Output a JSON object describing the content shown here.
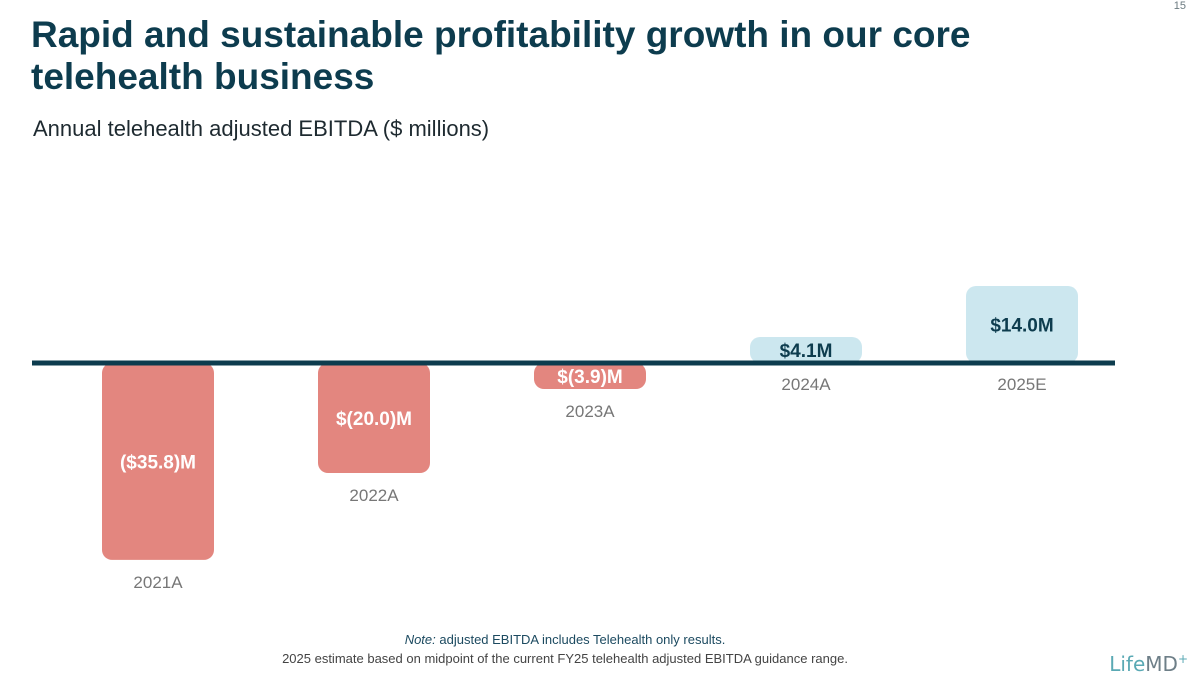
{
  "page_number": "15",
  "title": "Rapid and sustainable profitability growth in our core telehealth business",
  "chart_data": {
    "type": "bar",
    "title": "Annual telehealth adjusted EBITDA ($ millions)",
    "categories": [
      "2021A",
      "2022A",
      "2023A",
      "2024A",
      "2025E"
    ],
    "values": [
      -35.8,
      -20.0,
      -3.9,
      4.1,
      14.0
    ],
    "labels": [
      "($35.8)M",
      "$(20.0)M",
      "$(3.9)M",
      "$4.1M",
      "$14.0M"
    ],
    "ylim": [
      -36,
      14
    ],
    "xlabel": "",
    "ylabel": "",
    "grid": false,
    "colors": {
      "negative": "#e3867f",
      "positive": "#cce7ef",
      "axis": "#0d3c4e",
      "neg_text": "#ffffff",
      "pos_text": "#0d3c4e",
      "cat_text": "#777777"
    }
  },
  "notes": {
    "note_prefix": "Note:",
    "note_text": " adjusted EBITDA includes Telehealth only results.",
    "estimate_note": "2025 estimate based on midpoint of the current FY25 telehealth adjusted EBITDA guidance range."
  },
  "logo": {
    "part1": "Life",
    "part2": "MD",
    "plus": "+"
  }
}
